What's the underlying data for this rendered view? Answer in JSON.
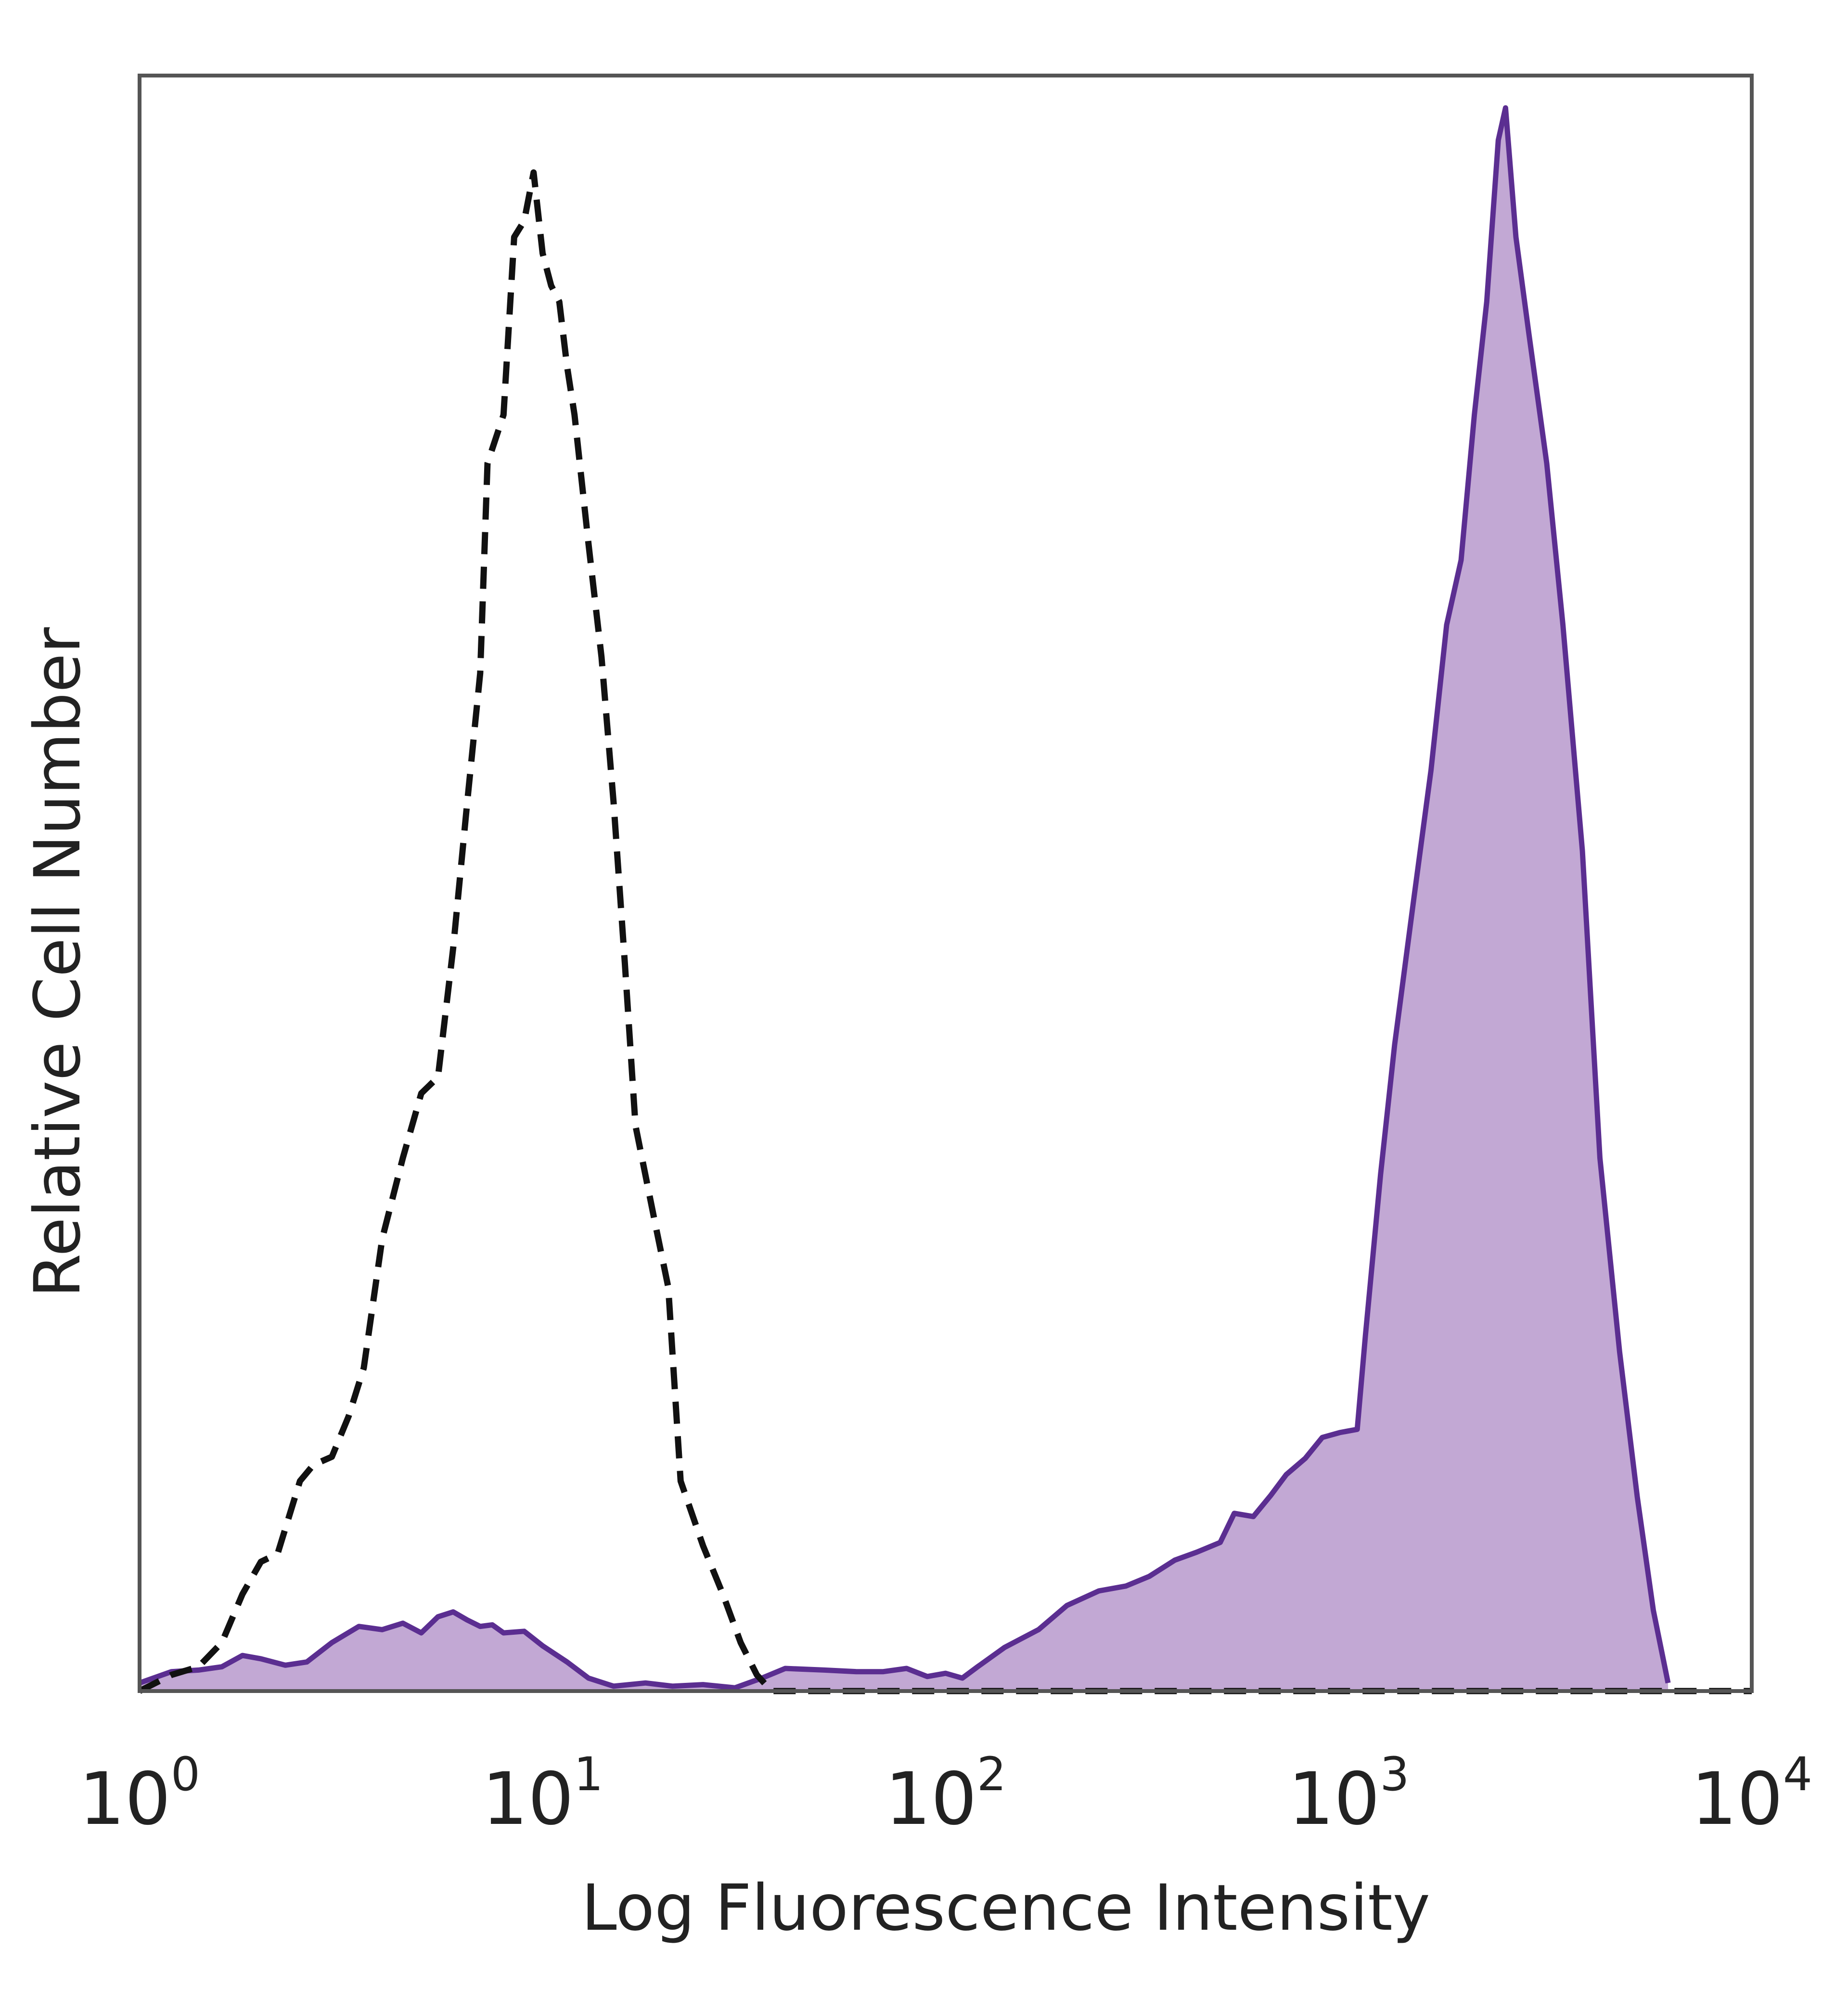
{
  "chart_data": {
    "type": "area",
    "xlabel": "Log Fluorescence Intensity",
    "ylabel": "Relative Cell Number",
    "xscale": "log",
    "xlim": [
      1,
      10000
    ],
    "ylim": [
      0,
      100
    ],
    "grid": false,
    "legend": "none",
    "x_ticks": [
      {
        "base": "10",
        "exp": "0",
        "value": 1
      },
      {
        "base": "10",
        "exp": "1",
        "value": 10
      },
      {
        "base": "10",
        "exp": "2",
        "value": 100
      },
      {
        "base": "10",
        "exp": "3",
        "value": 1000
      },
      {
        "base": "10",
        "exp": "4",
        "value": 10000
      }
    ],
    "series": [
      {
        "style": "dashed",
        "color": "#111111",
        "fill": "none",
        "points": [
          [
            1.0,
            0
          ],
          [
            1.2,
            1
          ],
          [
            1.4,
            1.5
          ],
          [
            1.6,
            3
          ],
          [
            1.8,
            6
          ],
          [
            2.0,
            8
          ],
          [
            2.2,
            8.5
          ],
          [
            2.5,
            13
          ],
          [
            2.7,
            14
          ],
          [
            3.0,
            14.5
          ],
          [
            3.3,
            17
          ],
          [
            3.6,
            20
          ],
          [
            4.0,
            28
          ],
          [
            4.5,
            33
          ],
          [
            5.0,
            37
          ],
          [
            5.5,
            38
          ],
          [
            6.0,
            46
          ],
          [
            6.5,
            55
          ],
          [
            7.0,
            63
          ],
          [
            7.3,
            76
          ],
          [
            8.0,
            79
          ],
          [
            8.5,
            90
          ],
          [
            9.0,
            91
          ],
          [
            9.5,
            94
          ],
          [
            10.0,
            89
          ],
          [
            10.5,
            87
          ],
          [
            11.0,
            86
          ],
          [
            11.5,
            82
          ],
          [
            12.0,
            79
          ],
          [
            13.0,
            71
          ],
          [
            14.0,
            64
          ],
          [
            15.0,
            55
          ],
          [
            16.0,
            45
          ],
          [
            17.0,
            35
          ],
          [
            19.0,
            29
          ],
          [
            20.5,
            25
          ],
          [
            22.0,
            13
          ],
          [
            25.0,
            9
          ],
          [
            28.0,
            6
          ],
          [
            31.0,
            3
          ],
          [
            34.0,
            1
          ],
          [
            37.0,
            0
          ],
          [
            100,
            0
          ],
          [
            10000,
            0
          ]
        ]
      },
      {
        "style": "solid",
        "color": "#5b2e91",
        "fill": "#c2a8d4",
        "points": [
          [
            1.0,
            0.5
          ],
          [
            1.2,
            1.2
          ],
          [
            1.4,
            1.3
          ],
          [
            1.6,
            1.5
          ],
          [
            1.8,
            2.2
          ],
          [
            2.0,
            2.0
          ],
          [
            2.3,
            1.6
          ],
          [
            2.6,
            1.8
          ],
          [
            3.0,
            3.0
          ],
          [
            3.5,
            4.0
          ],
          [
            4.0,
            3.8
          ],
          [
            4.5,
            4.2
          ],
          [
            5.0,
            3.6
          ],
          [
            5.5,
            4.6
          ],
          [
            6.0,
            4.9
          ],
          [
            6.5,
            4.4
          ],
          [
            7.0,
            4.0
          ],
          [
            7.5,
            4.1
          ],
          [
            8.0,
            3.6
          ],
          [
            9.0,
            3.7
          ],
          [
            10.0,
            2.8
          ],
          [
            11.5,
            1.8
          ],
          [
            13.0,
            0.8
          ],
          [
            15.0,
            0.3
          ],
          [
            18.0,
            0.5
          ],
          [
            21.0,
            0.3
          ],
          [
            25.0,
            0.4
          ],
          [
            30.0,
            0.2
          ],
          [
            35.0,
            0.8
          ],
          [
            40.0,
            1.4
          ],
          [
            50.0,
            1.3
          ],
          [
            60.0,
            1.2
          ],
          [
            70.0,
            1.2
          ],
          [
            80.0,
            1.4
          ],
          [
            90.0,
            0.9
          ],
          [
            100.0,
            1.1
          ],
          [
            110.0,
            0.8
          ],
          [
            120.0,
            1.5
          ],
          [
            140.0,
            2.7
          ],
          [
            170.0,
            3.8
          ],
          [
            200.0,
            5.3
          ],
          [
            240.0,
            6.2
          ],
          [
            280.0,
            6.5
          ],
          [
            320.0,
            7.1
          ],
          [
            370.0,
            8.1
          ],
          [
            420.0,
            8.6
          ],
          [
            480.0,
            9.2
          ],
          [
            520.0,
            11.0
          ],
          [
            580.0,
            10.8
          ],
          [
            640.0,
            12.1
          ],
          [
            700.0,
            13.4
          ],
          [
            780.0,
            14.4
          ],
          [
            860.0,
            15.7
          ],
          [
            950.0,
            16.0
          ],
          [
            1050.0,
            16.2
          ],
          [
            1100.0,
            22.0
          ],
          [
            1200.0,
            32.0
          ],
          [
            1300.0,
            40.0
          ],
          [
            1450.0,
            49.0
          ],
          [
            1600.0,
            57.0
          ],
          [
            1750.0,
            66.0
          ],
          [
            1900.0,
            70.0
          ],
          [
            2050.0,
            79.0
          ],
          [
            2200.0,
            86.0
          ],
          [
            2350.0,
            96.0
          ],
          [
            2450.0,
            98.0
          ],
          [
            2600.0,
            90.0
          ],
          [
            2800.0,
            84.0
          ],
          [
            3100.0,
            76.0
          ],
          [
            3400.0,
            66.0
          ],
          [
            3800.0,
            52.0
          ],
          [
            4200.0,
            33.0
          ],
          [
            4700.0,
            21.0
          ],
          [
            5200.0,
            12.0
          ],
          [
            5700.0,
            5.0
          ],
          [
            6200.0,
            0.5
          ]
        ]
      }
    ]
  }
}
